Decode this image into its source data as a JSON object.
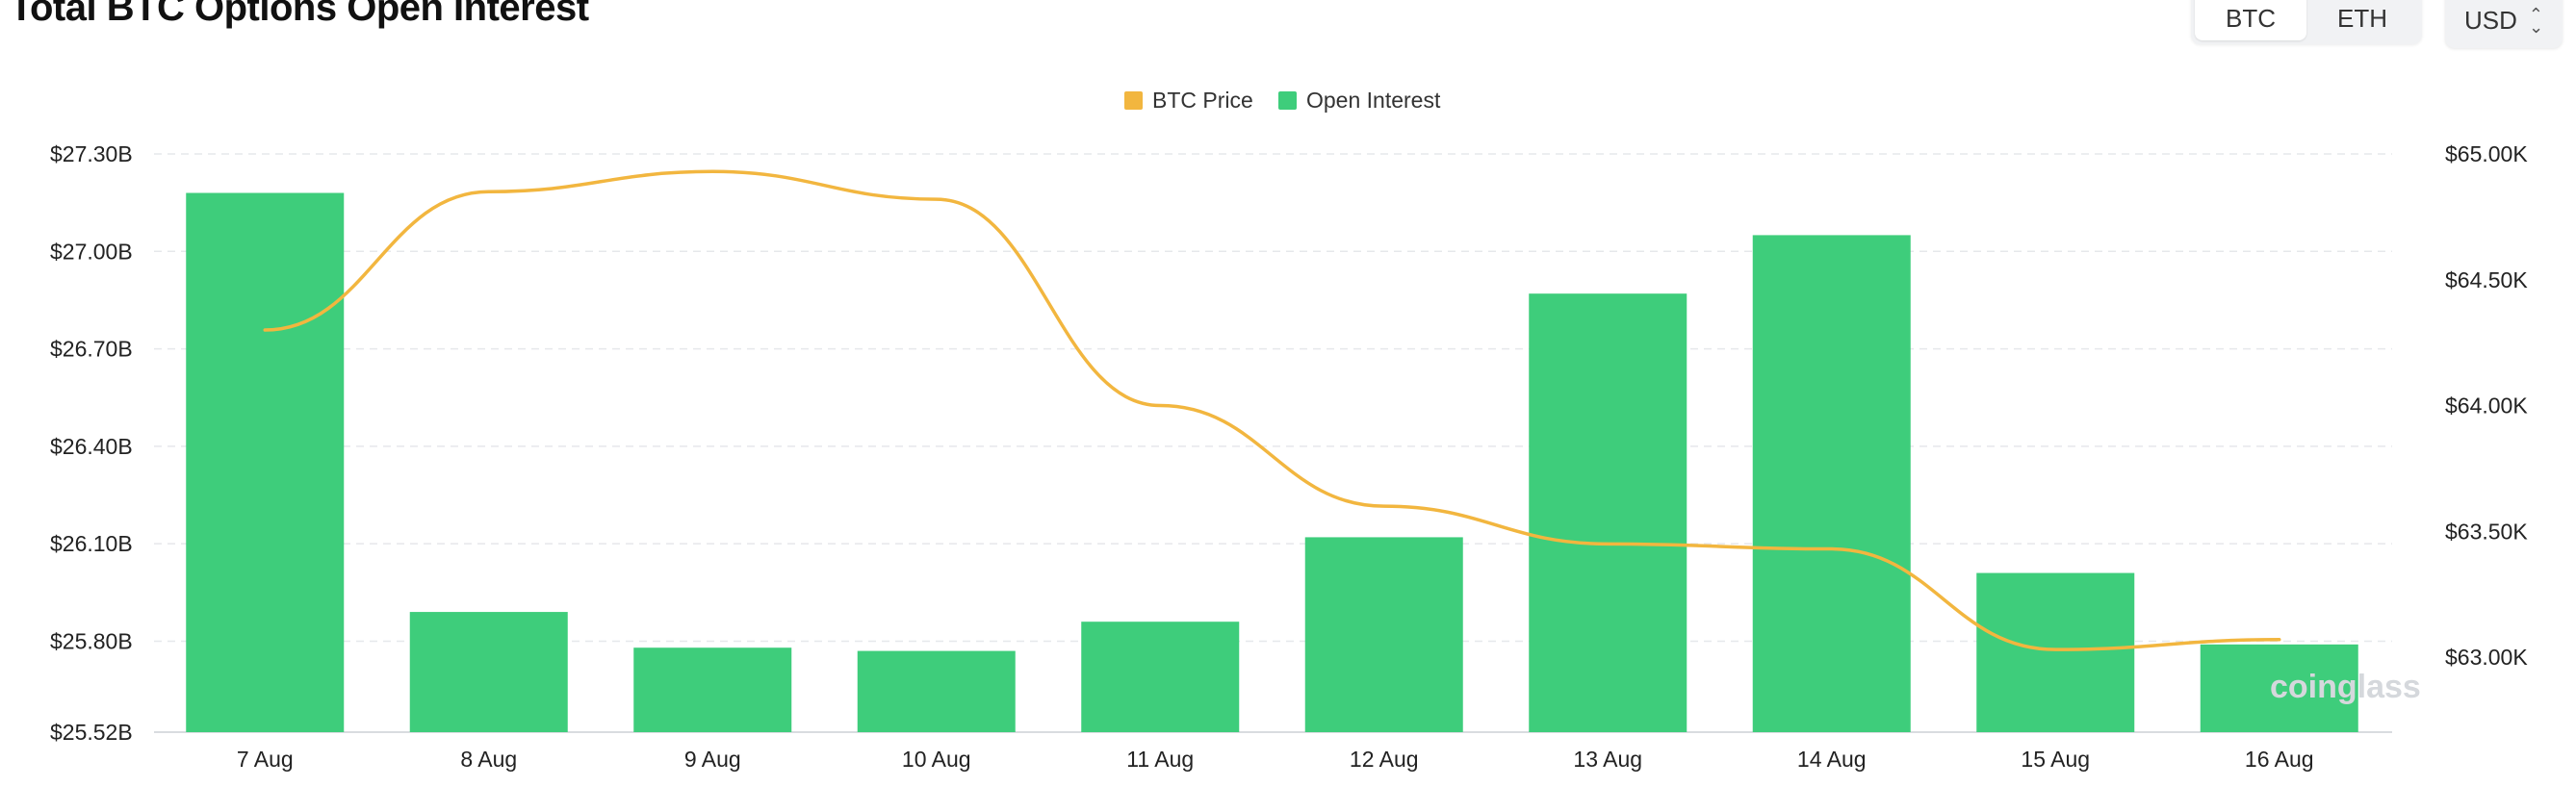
{
  "title": "Total BTC Options Open Interest",
  "controls": {
    "coins": [
      "BTC",
      "ETH"
    ],
    "active_coin": "BTC",
    "currency": "USD"
  },
  "watermark": "coinglass",
  "colors": {
    "bar": "#3ecd7b",
    "line": "#f2b63f",
    "legend_price": "#f2b63f",
    "legend_oi": "#3ecd7b",
    "grid": "#e6e8eb"
  },
  "chart_data": {
    "type": "bar",
    "categories": [
      "7 Aug",
      "8 Aug",
      "9 Aug",
      "10 Aug",
      "11 Aug",
      "12 Aug",
      "13 Aug",
      "14 Aug",
      "15 Aug",
      "16 Aug"
    ],
    "series": [
      {
        "name": "Open Interest",
        "type": "bar",
        "axis": "left",
        "values": [
          27.18,
          25.89,
          25.78,
          25.77,
          25.86,
          26.12,
          26.87,
          27.05,
          26.01,
          25.79
        ]
      },
      {
        "name": "BTC Price",
        "type": "line",
        "axis": "right",
        "values": [
          64300,
          64850,
          64930,
          64820,
          64000,
          63600,
          63450,
          63430,
          63030,
          63070
        ]
      }
    ],
    "y_left": {
      "ticks": [
        "$27.30B",
        "$27.00B",
        "$26.70B",
        "$26.40B",
        "$26.10B",
        "$25.80B",
        "$25.52B"
      ],
      "tick_values": [
        27.3,
        27.0,
        26.7,
        26.4,
        26.1,
        25.8,
        25.52
      ],
      "range": [
        25.52,
        27.3
      ]
    },
    "y_right": {
      "ticks": [
        "$65.00K",
        "$64.50K",
        "$64.00K",
        "$63.50K",
        "$63.00K"
      ],
      "tick_values": [
        65000,
        64500,
        64000,
        63500,
        63000
      ]
    },
    "legend": [
      "BTC Price",
      "Open Interest"
    ],
    "legend_position": "top-center",
    "grid": true
  }
}
